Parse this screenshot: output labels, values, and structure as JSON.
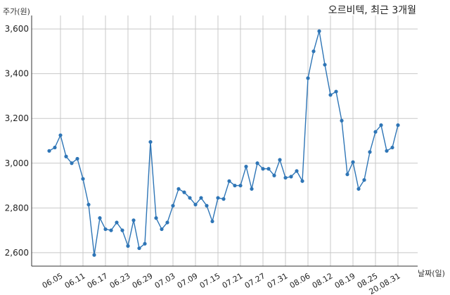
{
  "chart_data": {
    "type": "line",
    "title": "오르비텍, 최근 3개월",
    "ylabel": "주가(원)",
    "xlabel": "날짜(일)",
    "ylim": [
      2540,
      3660
    ],
    "yticks": [
      2600,
      2800,
      3000,
      3200,
      3400,
      3600
    ],
    "ytick_labels": [
      "2,600",
      "2,800",
      "3,000",
      "3,200",
      "3,400",
      "3,600"
    ],
    "xtick_labels": [
      {
        "label": "06.05",
        "index": 2
      },
      {
        "label": "06.11",
        "index": 6
      },
      {
        "label": "06.17",
        "index": 10
      },
      {
        "label": "06.23",
        "index": 14
      },
      {
        "label": "06.29",
        "index": 18
      },
      {
        "label": "07.03",
        "index": 22
      },
      {
        "label": "07.09",
        "index": 26
      },
      {
        "label": "07.15",
        "index": 30
      },
      {
        "label": "07.21",
        "index": 34
      },
      {
        "label": "07.27",
        "index": 38
      },
      {
        "label": "07.31",
        "index": 42
      },
      {
        "label": "08.06",
        "index": 46
      },
      {
        "label": "08.12",
        "index": 50
      },
      {
        "label": "08.19",
        "index": 54
      },
      {
        "label": "08.25",
        "index": 58
      },
      {
        "label": "20.08.31",
        "index": 62
      }
    ],
    "grid": true,
    "series": [
      {
        "color": "#2e75b6",
        "values": [
          3055,
          3070,
          3125,
          3030,
          3000,
          3020,
          2930,
          2815,
          2590,
          2755,
          2705,
          2700,
          2735,
          2700,
          2630,
          2745,
          2620,
          2640,
          3095,
          2755,
          2705,
          2735,
          2810,
          2885,
          2870,
          2845,
          2815,
          2845,
          2810,
          2740,
          2845,
          2840,
          2920,
          2900,
          2900,
          2985,
          2885,
          3000,
          2975,
          2975,
          2945,
          3015,
          2935,
          2940,
          2965,
          2920,
          3380,
          3500,
          3590,
          3440,
          3305,
          3320,
          3190,
          2950,
          3005,
          2885,
          2925,
          3050,
          3140,
          3170,
          3055,
          3070,
          3170
        ]
      }
    ]
  }
}
